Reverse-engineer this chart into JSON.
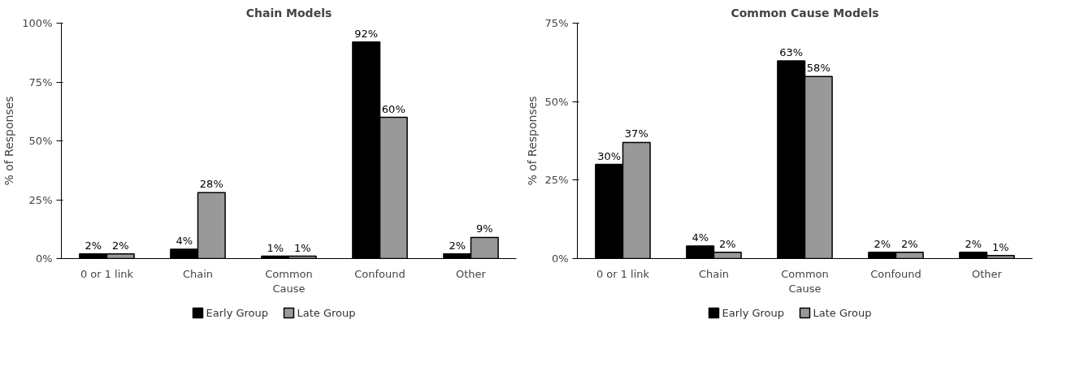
{
  "chart_data": [
    {
      "type": "bar",
      "title": "Chain Models",
      "ylabel": "% of Responses",
      "categories": [
        "0 or 1 link",
        "Chain",
        "Common Cause",
        "Confound",
        "Other"
      ],
      "series": [
        {
          "name": "Early Group",
          "color": "#000000",
          "values": [
            2,
            4,
            1,
            92,
            2
          ],
          "value_labels": [
            "2%",
            "4%",
            "1%",
            "92%",
            "2%"
          ]
        },
        {
          "name": "Late Group",
          "color": "#999999",
          "values": [
            2,
            28,
            1,
            60,
            9
          ],
          "value_labels": [
            "2%",
            "28%",
            "1%",
            "60%",
            "9%"
          ]
        }
      ],
      "ylim": [
        0,
        100
      ],
      "yticks": [
        {
          "value": 0,
          "label": "0%"
        },
        {
          "value": 25,
          "label": "25%"
        },
        {
          "value": 50,
          "label": "50%"
        },
        {
          "value": 75,
          "label": "75%"
        },
        {
          "value": 100,
          "label": "100%"
        }
      ],
      "grid": false,
      "legend": "bottom"
    },
    {
      "type": "bar",
      "title": "Common Cause Models",
      "ylabel": "% of Responses",
      "categories": [
        "0 or 1 link",
        "Chain",
        "Common Cause",
        "Confound",
        "Other"
      ],
      "series": [
        {
          "name": "Early Group",
          "color": "#000000",
          "values": [
            30,
            4,
            63,
            2,
            2
          ],
          "value_labels": [
            "30%",
            "4%",
            "63%",
            "2%",
            "2%"
          ]
        },
        {
          "name": "Late Group",
          "color": "#999999",
          "values": [
            37,
            2,
            58,
            2,
            1
          ],
          "value_labels": [
            "37%",
            "2%",
            "58%",
            "2%",
            "1%"
          ]
        }
      ],
      "ylim": [
        0,
        75
      ],
      "yticks": [
        {
          "value": 0,
          "label": "0%"
        },
        {
          "value": 25,
          "label": "25%"
        },
        {
          "value": 50,
          "label": "50%"
        },
        {
          "value": 75,
          "label": "75%"
        }
      ],
      "grid": false,
      "legend": "bottom"
    }
  ]
}
